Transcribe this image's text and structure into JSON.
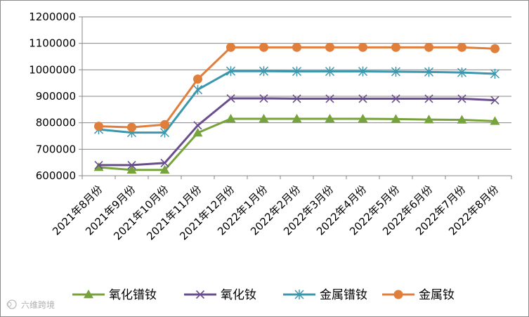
{
  "chart_data": {
    "type": "line",
    "title": "",
    "xlabel": "",
    "ylabel": "",
    "ylim": [
      600000,
      1200000
    ],
    "yticks": [
      "600000",
      "700000",
      "800000",
      "900000",
      "1000000",
      "1100000",
      "1200000"
    ],
    "ytick_values": [
      600000,
      700000,
      800000,
      900000,
      1000000,
      1100000,
      1200000
    ],
    "grid": "horizontal",
    "legend_position": "bottom",
    "categories": [
      "2021年8月份",
      "2021年9月份",
      "2021年10月份",
      "2021年11月份",
      "2021年12月份",
      "2022年1月份",
      "2022年2月份",
      "2022年3月份",
      "2022年4月份",
      "2022年5月份",
      "2022年6月份",
      "2022年7月份",
      "2022年8月份"
    ],
    "series": [
      {
        "name": "氧化镨钕",
        "color": "#77a33c",
        "marker": "triangle",
        "values": [
          632000,
          622000,
          622000,
          762000,
          815000,
          815000,
          815000,
          815000,
          815000,
          814000,
          812000,
          811000,
          806000
        ]
      },
      {
        "name": "氧化钕",
        "color": "#6a4d8f",
        "marker": "x",
        "values": [
          640000,
          640000,
          648000,
          790000,
          892000,
          892000,
          891000,
          891000,
          891000,
          891000,
          891000,
          891000,
          885000
        ]
      },
      {
        "name": "金属镨钕",
        "color": "#3b97ae",
        "marker": "star",
        "values": [
          775000,
          763000,
          763000,
          925000,
          995000,
          995000,
          994000,
          994000,
          994000,
          993000,
          992000,
          990000,
          985000
        ]
      },
      {
        "name": "金属钕",
        "color": "#e07f3b",
        "marker": "circle",
        "values": [
          787000,
          783000,
          793000,
          965000,
          1085000,
          1085000,
          1085000,
          1085000,
          1085000,
          1085000,
          1085000,
          1085000,
          1080000
        ]
      }
    ]
  },
  "watermark": "六维跨境"
}
